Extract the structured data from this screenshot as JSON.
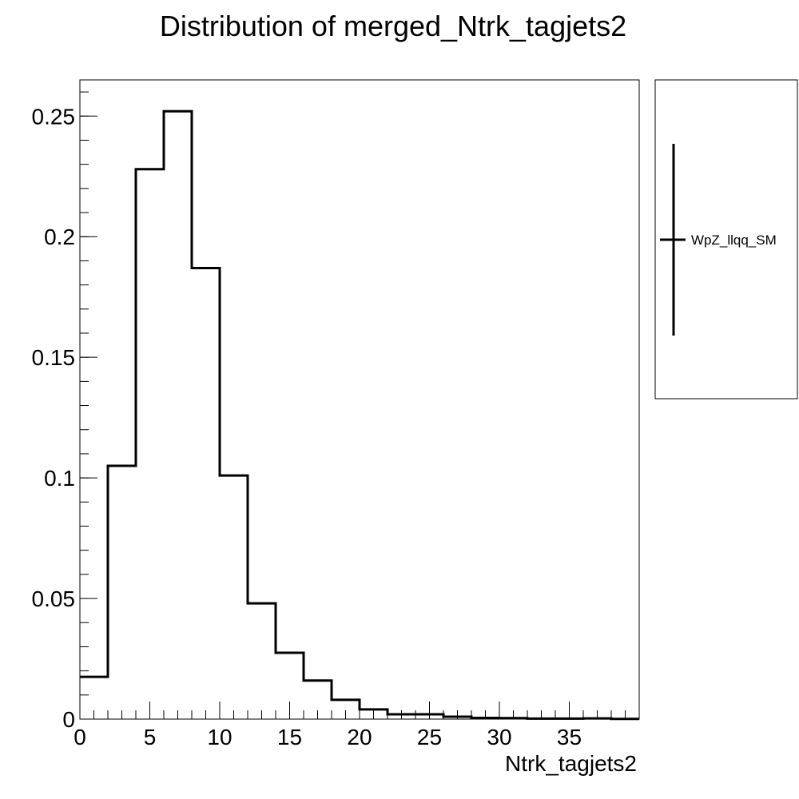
{
  "chart_data": {
    "type": "histogram",
    "title": "Distribution of merged_Ntrk_tagjets2",
    "xlabel": "Ntrk_tagjets2",
    "ylabel": "",
    "xlim": [
      0,
      40
    ],
    "ylim": [
      0,
      0.265
    ],
    "bin_edges": [
      0,
      2,
      4,
      6,
      8,
      10,
      12,
      14,
      16,
      18,
      20,
      22,
      24,
      26,
      28,
      30,
      32,
      34,
      36,
      38,
      40
    ],
    "series": [
      {
        "name": "WpZ_llqq_SM",
        "color": "#000000",
        "values": [
          0.0175,
          0.105,
          0.228,
          0.252,
          0.187,
          0.101,
          0.048,
          0.0275,
          0.016,
          0.008,
          0.004,
          0.002,
          0.002,
          0.001,
          0.0005,
          0.0004,
          0.0002,
          0.0002,
          0.0003,
          0.0001
        ]
      }
    ],
    "x_ticks": [
      {
        "value": 0,
        "label": "0"
      },
      {
        "value": 5,
        "label": "5"
      },
      {
        "value": 10,
        "label": "10"
      },
      {
        "value": 15,
        "label": "15"
      },
      {
        "value": 20,
        "label": "20"
      },
      {
        "value": 25,
        "label": "25"
      },
      {
        "value": 30,
        "label": "30"
      },
      {
        "value": 35,
        "label": "35"
      }
    ],
    "y_ticks": [
      {
        "value": 0,
        "label": "0"
      },
      {
        "value": 0.05,
        "label": "0.05"
      },
      {
        "value": 0.1,
        "label": "0.1"
      },
      {
        "value": 0.15,
        "label": "0.15"
      },
      {
        "value": 0.2,
        "label": "0.2"
      },
      {
        "value": 0.25,
        "label": "0.25"
      }
    ],
    "grid": false,
    "legend_position": "right"
  }
}
